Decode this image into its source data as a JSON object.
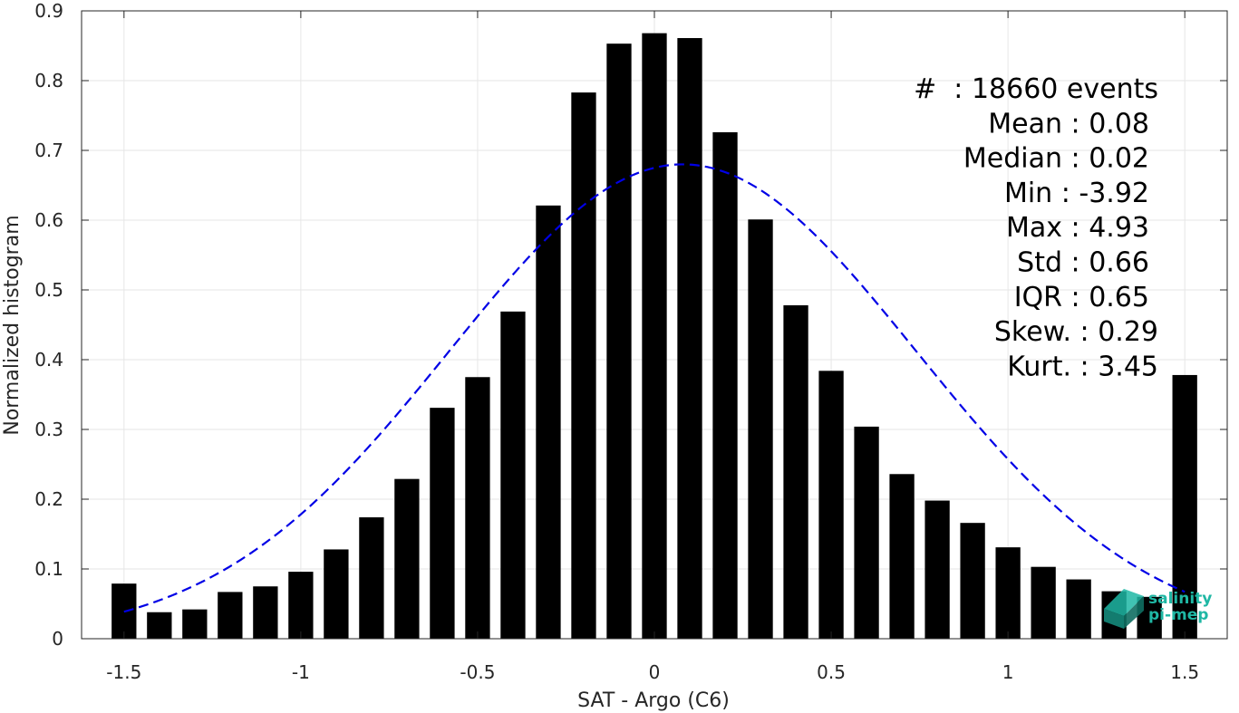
{
  "chart_data": {
    "type": "bar",
    "xlabel": "SAT - Argo (C6)",
    "ylabel": "Normalized histogram",
    "xlim": [
      -1.62,
      1.62
    ],
    "ylim": [
      0,
      0.9
    ],
    "xticks": [
      -1.5,
      -1,
      -0.5,
      0,
      0.5,
      1,
      1.5
    ],
    "xtick_labels": [
      "-1.5",
      "-1",
      "-0.5",
      "0",
      "0.5",
      "1",
      "1.5"
    ],
    "yticks": [
      0,
      0.1,
      0.2,
      0.3,
      0.4,
      0.5,
      0.6,
      0.7,
      0.8,
      0.9
    ],
    "ytick_labels": [
      "0",
      "0.1",
      "0.2",
      "0.3",
      "0.4",
      "0.5",
      "0.6",
      "0.7",
      "0.8",
      "0.9"
    ],
    "grid": true,
    "bar_color": "#000000",
    "bar_width": 0.07,
    "x": [
      -1.5,
      -1.4,
      -1.3,
      -1.2,
      -1.1,
      -1.0,
      -0.9,
      -0.8,
      -0.7,
      -0.6,
      -0.5,
      -0.4,
      -0.3,
      -0.2,
      -0.1,
      0.0,
      0.1,
      0.2,
      0.3,
      0.4,
      0.5,
      0.6,
      0.7,
      0.8,
      0.9,
      1.0,
      1.1,
      1.2,
      1.3,
      1.4,
      1.5
    ],
    "values": [
      0.079,
      0.038,
      0.042,
      0.067,
      0.075,
      0.096,
      0.128,
      0.174,
      0.229,
      0.331,
      0.375,
      0.469,
      0.621,
      0.783,
      0.853,
      0.868,
      0.861,
      0.726,
      0.601,
      0.478,
      0.384,
      0.304,
      0.236,
      0.198,
      0.166,
      0.131,
      0.103,
      0.085,
      0.068,
      0.06,
      0.378
    ],
    "fit_curve": {
      "type": "gaussian",
      "mean": 0.08,
      "std": 0.66,
      "peak": 0.68,
      "color": "#0000e6",
      "style": "dashed",
      "x_range": [
        -1.5,
        1.5
      ]
    },
    "stats": [
      {
        "label": "#  : 18660 events"
      },
      {
        "label": "Mean : 0.08"
      },
      {
        "label": "Median : 0.02"
      },
      {
        "label": "Min : -3.92"
      },
      {
        "label": "Max : 4.93"
      },
      {
        "label": "Std : 0.66"
      },
      {
        "label": "IQR : 0.65"
      },
      {
        "label": "Skew. : 0.29"
      },
      {
        "label": "Kurt. : 3.45"
      }
    ]
  },
  "logo": {
    "line1": "salinity",
    "line2": "pi-mep",
    "color": "#1fb7a4"
  }
}
